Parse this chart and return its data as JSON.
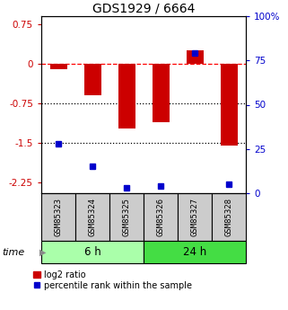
{
  "title": "GDS1929 / 6664",
  "samples": [
    "GSM85323",
    "GSM85324",
    "GSM85325",
    "GSM85326",
    "GSM85327",
    "GSM85328"
  ],
  "log2_ratio": [
    -0.1,
    -0.6,
    -1.22,
    -1.1,
    0.26,
    -1.55
  ],
  "percentile_rank": [
    28,
    15,
    3,
    4,
    79,
    5
  ],
  "ylim_left": [
    -2.45,
    0.9
  ],
  "ylim_right": [
    0,
    100
  ],
  "yticks_left": [
    0.75,
    0,
    -0.75,
    -1.5,
    -2.25
  ],
  "yticks_right": [
    100,
    75,
    50,
    25,
    0
  ],
  "hlines": [
    0,
    -0.75,
    -1.5
  ],
  "hline_styles": [
    "dashed",
    "dotted",
    "dotted"
  ],
  "hline_colors": [
    "red",
    "black",
    "black"
  ],
  "groups": [
    {
      "label": "6 h",
      "indices": [
        0,
        1,
        2
      ],
      "color": "#aaffaa"
    },
    {
      "label": "24 h",
      "indices": [
        3,
        4,
        5
      ],
      "color": "#44dd44"
    }
  ],
  "bar_color": "#cc0000",
  "square_color": "#0000cc",
  "bar_width": 0.5,
  "title_fontsize": 10,
  "tick_fontsize": 7.5,
  "legend_fontsize": 7,
  "sample_label_fontsize": 6.5,
  "group_label_fontsize": 8.5,
  "time_label_fontsize": 8,
  "background_color": "#ffffff",
  "left_tick_color": "#cc0000",
  "right_tick_color": "#0000cc",
  "sample_box_color": "#cccccc"
}
